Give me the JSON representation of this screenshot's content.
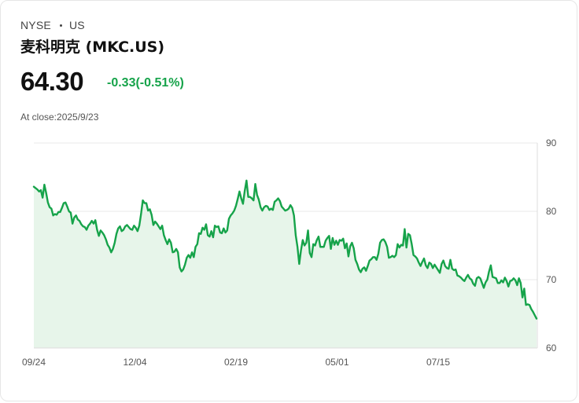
{
  "header": {
    "exchange": "NYSE",
    "region": "US",
    "name": "麦科明克 (MKC.US)",
    "price": "64.30",
    "change": "-0.33(-0.51%)",
    "close_time": "At close:2025/9/23"
  },
  "colors": {
    "line": "#16a34a",
    "fill": "#e7f5ea",
    "change": "#16a34a",
    "grid": "#e8e8e8"
  },
  "chart_data": {
    "type": "area",
    "title": "",
    "xlabel": "",
    "ylabel": "",
    "ylim": [
      60,
      90
    ],
    "yticks": [
      90,
      80,
      70,
      60
    ],
    "xticks": [
      "09/24",
      "12/04",
      "02/19",
      "05/01",
      "07/15"
    ],
    "grid": true,
    "y_axis_position": "right",
    "series": [
      {
        "values": [
          83.6,
          83.4,
          83.2,
          82.9,
          83.1,
          82.0,
          83.9,
          82.7,
          81.3,
          80.6,
          80.4,
          79.4,
          79.6,
          79.5,
          79.9,
          79.9,
          80.5,
          81.2,
          81.3,
          80.7,
          80.0,
          79.8,
          78.2,
          79.1,
          79.4,
          78.8,
          78.6,
          78.1,
          77.8,
          77.7,
          77.3,
          77.9,
          78.2,
          78.6,
          78.2,
          78.7,
          77.3,
          76.4,
          77.2,
          76.9,
          76.5,
          75.9,
          75.1,
          74.7,
          74.0,
          74.5,
          75.4,
          76.7,
          77.5,
          77.8,
          77.1,
          77.3,
          77.8,
          78.0,
          77.7,
          77.4,
          77.3,
          77.9,
          77.6,
          77.1,
          77.9,
          79.6,
          81.6,
          81.2,
          81.2,
          80.1,
          80.3,
          79.5,
          78.0,
          78.5,
          78.2,
          77.8,
          77.4,
          77.9,
          76.5,
          75.8,
          75.2,
          75.9,
          75.4,
          74.0,
          74.1,
          74.5,
          74.0,
          71.8,
          71.2,
          71.5,
          72.2,
          73.2,
          73.6,
          73.2,
          74.0,
          73.3,
          74.8,
          75.2,
          76.8,
          76.7,
          77.6,
          77.3,
          78.1,
          76.5,
          76.3,
          77.1,
          76.2,
          77.9,
          77.7,
          77.8,
          76.9,
          76.8,
          77.5,
          76.9,
          77.2,
          78.9,
          79.4,
          79.7,
          80.1,
          80.8,
          81.8,
          82.9,
          81.9,
          81.1,
          83.0,
          84.5,
          82.1,
          82.1,
          81.9,
          81.6,
          84.0,
          82.4,
          81.7,
          80.6,
          80.1,
          80.6,
          80.8,
          80.7,
          80.2,
          80.4,
          80.2,
          81.4,
          81.6,
          81.9,
          81.5,
          80.7,
          80.4,
          80.1,
          80.2,
          80.4,
          80.9,
          80.5,
          79.4,
          76.5,
          74.8,
          72.3,
          74.3,
          75.8,
          75.0,
          75.4,
          77.2,
          73.9,
          73.3,
          75.2,
          75.0,
          75.8,
          76.3,
          74.8,
          74.8,
          74.8,
          75.7,
          76.1,
          76.4,
          74.5,
          76.1,
          75.1,
          75.7,
          75.1,
          75.8,
          75.7,
          76.0,
          74.6,
          75.3,
          73.4,
          74.9,
          75.4,
          74.6,
          72.9,
          72.3,
          71.5,
          71.1,
          71.6,
          71.8,
          71.3,
          72.0,
          72.8,
          73.0,
          73.3,
          73.3,
          72.9,
          73.8,
          75.4,
          75.8,
          75.9,
          75.5,
          74.8,
          73.2,
          73.3,
          73.5,
          73.3,
          73.6,
          75.2,
          74.7,
          75.1,
          75.0,
          77.4,
          74.7,
          76.7,
          76.5,
          75.2,
          73.6,
          73.4,
          73.1,
          72.5,
          72.0,
          72.6,
          73.1,
          72.1,
          71.7,
          72.5,
          72.3,
          71.7,
          72.2,
          71.8,
          71.4,
          71.0,
          72.3,
          72.8,
          72.0,
          71.7,
          71.6,
          72.9,
          71.6,
          71.4,
          71.5,
          70.6,
          70.5,
          70.3,
          70.0,
          69.8,
          70.3,
          70.7,
          70.2,
          70.0,
          69.4,
          69.1,
          70.2,
          70.4,
          70.2,
          69.5,
          68.8,
          69.6,
          70.0,
          71.2,
          72.1,
          70.4,
          70.3,
          70.2,
          69.5,
          69.5,
          69.9,
          69.6,
          70.3,
          69.8,
          69.0,
          69.8,
          69.9,
          70.2,
          69.9,
          69.2,
          70.2,
          69.5,
          67.4,
          68.7,
          66.3,
          66.4,
          66.3,
          65.7,
          65.3,
          64.8,
          64.3
        ]
      }
    ]
  }
}
